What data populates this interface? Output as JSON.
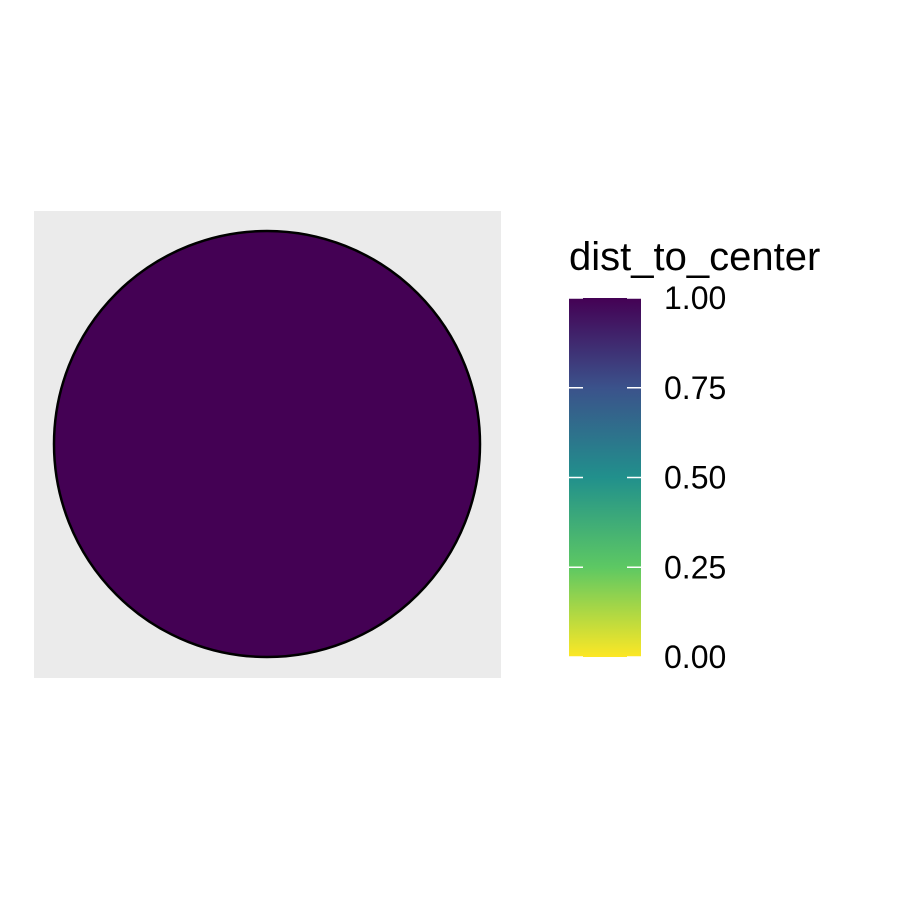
{
  "chart_data": {
    "type": "heatmap",
    "legend": {
      "title": "dist_to_center",
      "ticks": [
        {
          "value": 1.0,
          "label": "1.00"
        },
        {
          "value": 0.75,
          "label": "0.75"
        },
        {
          "value": 0.5,
          "label": "0.50"
        },
        {
          "value": 0.25,
          "label": "0.25"
        },
        {
          "value": 0.0,
          "label": "0.00"
        }
      ],
      "range": [
        0,
        1
      ],
      "placement": "right",
      "palette": "viridis (reversed)"
    },
    "shape": {
      "kind": "circle",
      "fill_value": 1.0,
      "fill_color": "#440154",
      "outline_color": "#000000"
    },
    "panel_background": "#EBEBEB",
    "grid": false,
    "colors": {
      "gradient_stops": [
        "#FDE725",
        "#5DC863",
        "#21908C",
        "#3B528B",
        "#440154"
      ]
    }
  }
}
